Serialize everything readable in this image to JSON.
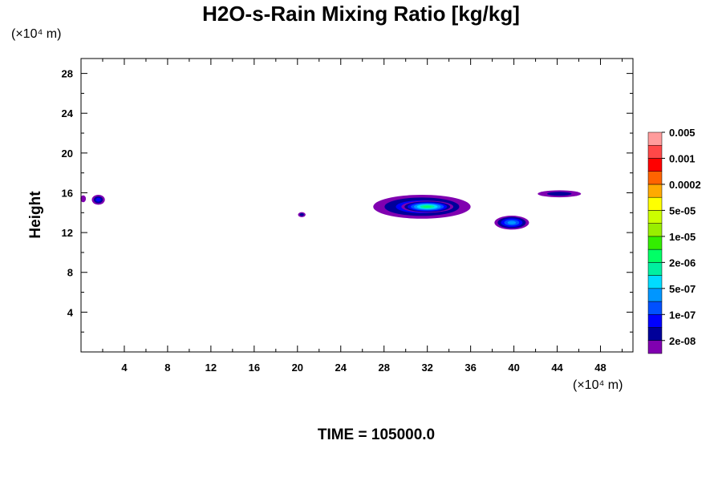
{
  "chart_data": {
    "type": "heatmap",
    "title": "H2O-s-Rain Mixing Ratio [kg/kg]",
    "ylabel": "Height",
    "xunit": "(×10⁴ m)",
    "yunit": "(×10⁴ m)",
    "xlim": [
      0,
      51
    ],
    "ylim": [
      0,
      29.5
    ],
    "xticks": [
      4,
      8,
      12,
      16,
      20,
      24,
      28,
      32,
      36,
      40,
      44,
      48
    ],
    "yticks": [
      4,
      8,
      12,
      16,
      20,
      24,
      28
    ],
    "footer": "TIME = 105000.0",
    "colorbar": {
      "colors": [
        "#8000b0",
        "#00009a",
        "#0000ff",
        "#0050ff",
        "#0096ff",
        "#00dcff",
        "#00f0a0",
        "#00ff66",
        "#33ee00",
        "#99ee00",
        "#ccff00",
        "#ffff00",
        "#ffaa00",
        "#ff6400",
        "#ff0000",
        "#ff4848",
        "#ff9c9c"
      ],
      "labels": [
        "2e-08",
        "1e-07",
        "5e-07",
        "2e-06",
        "1e-05",
        "5e-05",
        "0.0002",
        "0.001",
        "0.005"
      ]
    },
    "regions": [
      {
        "x": 0.2,
        "y": 15.4,
        "rx": 0.25,
        "ry": 0.35,
        "level": 0
      },
      {
        "x": 1.6,
        "y": 15.3,
        "rx": 0.6,
        "ry": 0.5,
        "level": 2
      },
      {
        "x": 20.4,
        "y": 13.8,
        "rx": 0.35,
        "ry": 0.25,
        "level": 1
      },
      {
        "x": 31.5,
        "y": 14.6,
        "rx": 4.5,
        "ry": 1.2,
        "level": 3
      },
      {
        "x": 32.0,
        "y": 14.6,
        "rx": 2.4,
        "ry": 0.6,
        "level": 7
      },
      {
        "x": 39.8,
        "y": 13.0,
        "rx": 1.6,
        "ry": 0.7,
        "level": 4
      },
      {
        "x": 44.2,
        "y": 15.9,
        "rx": 2.0,
        "ry": 0.35,
        "level": 1
      }
    ]
  }
}
